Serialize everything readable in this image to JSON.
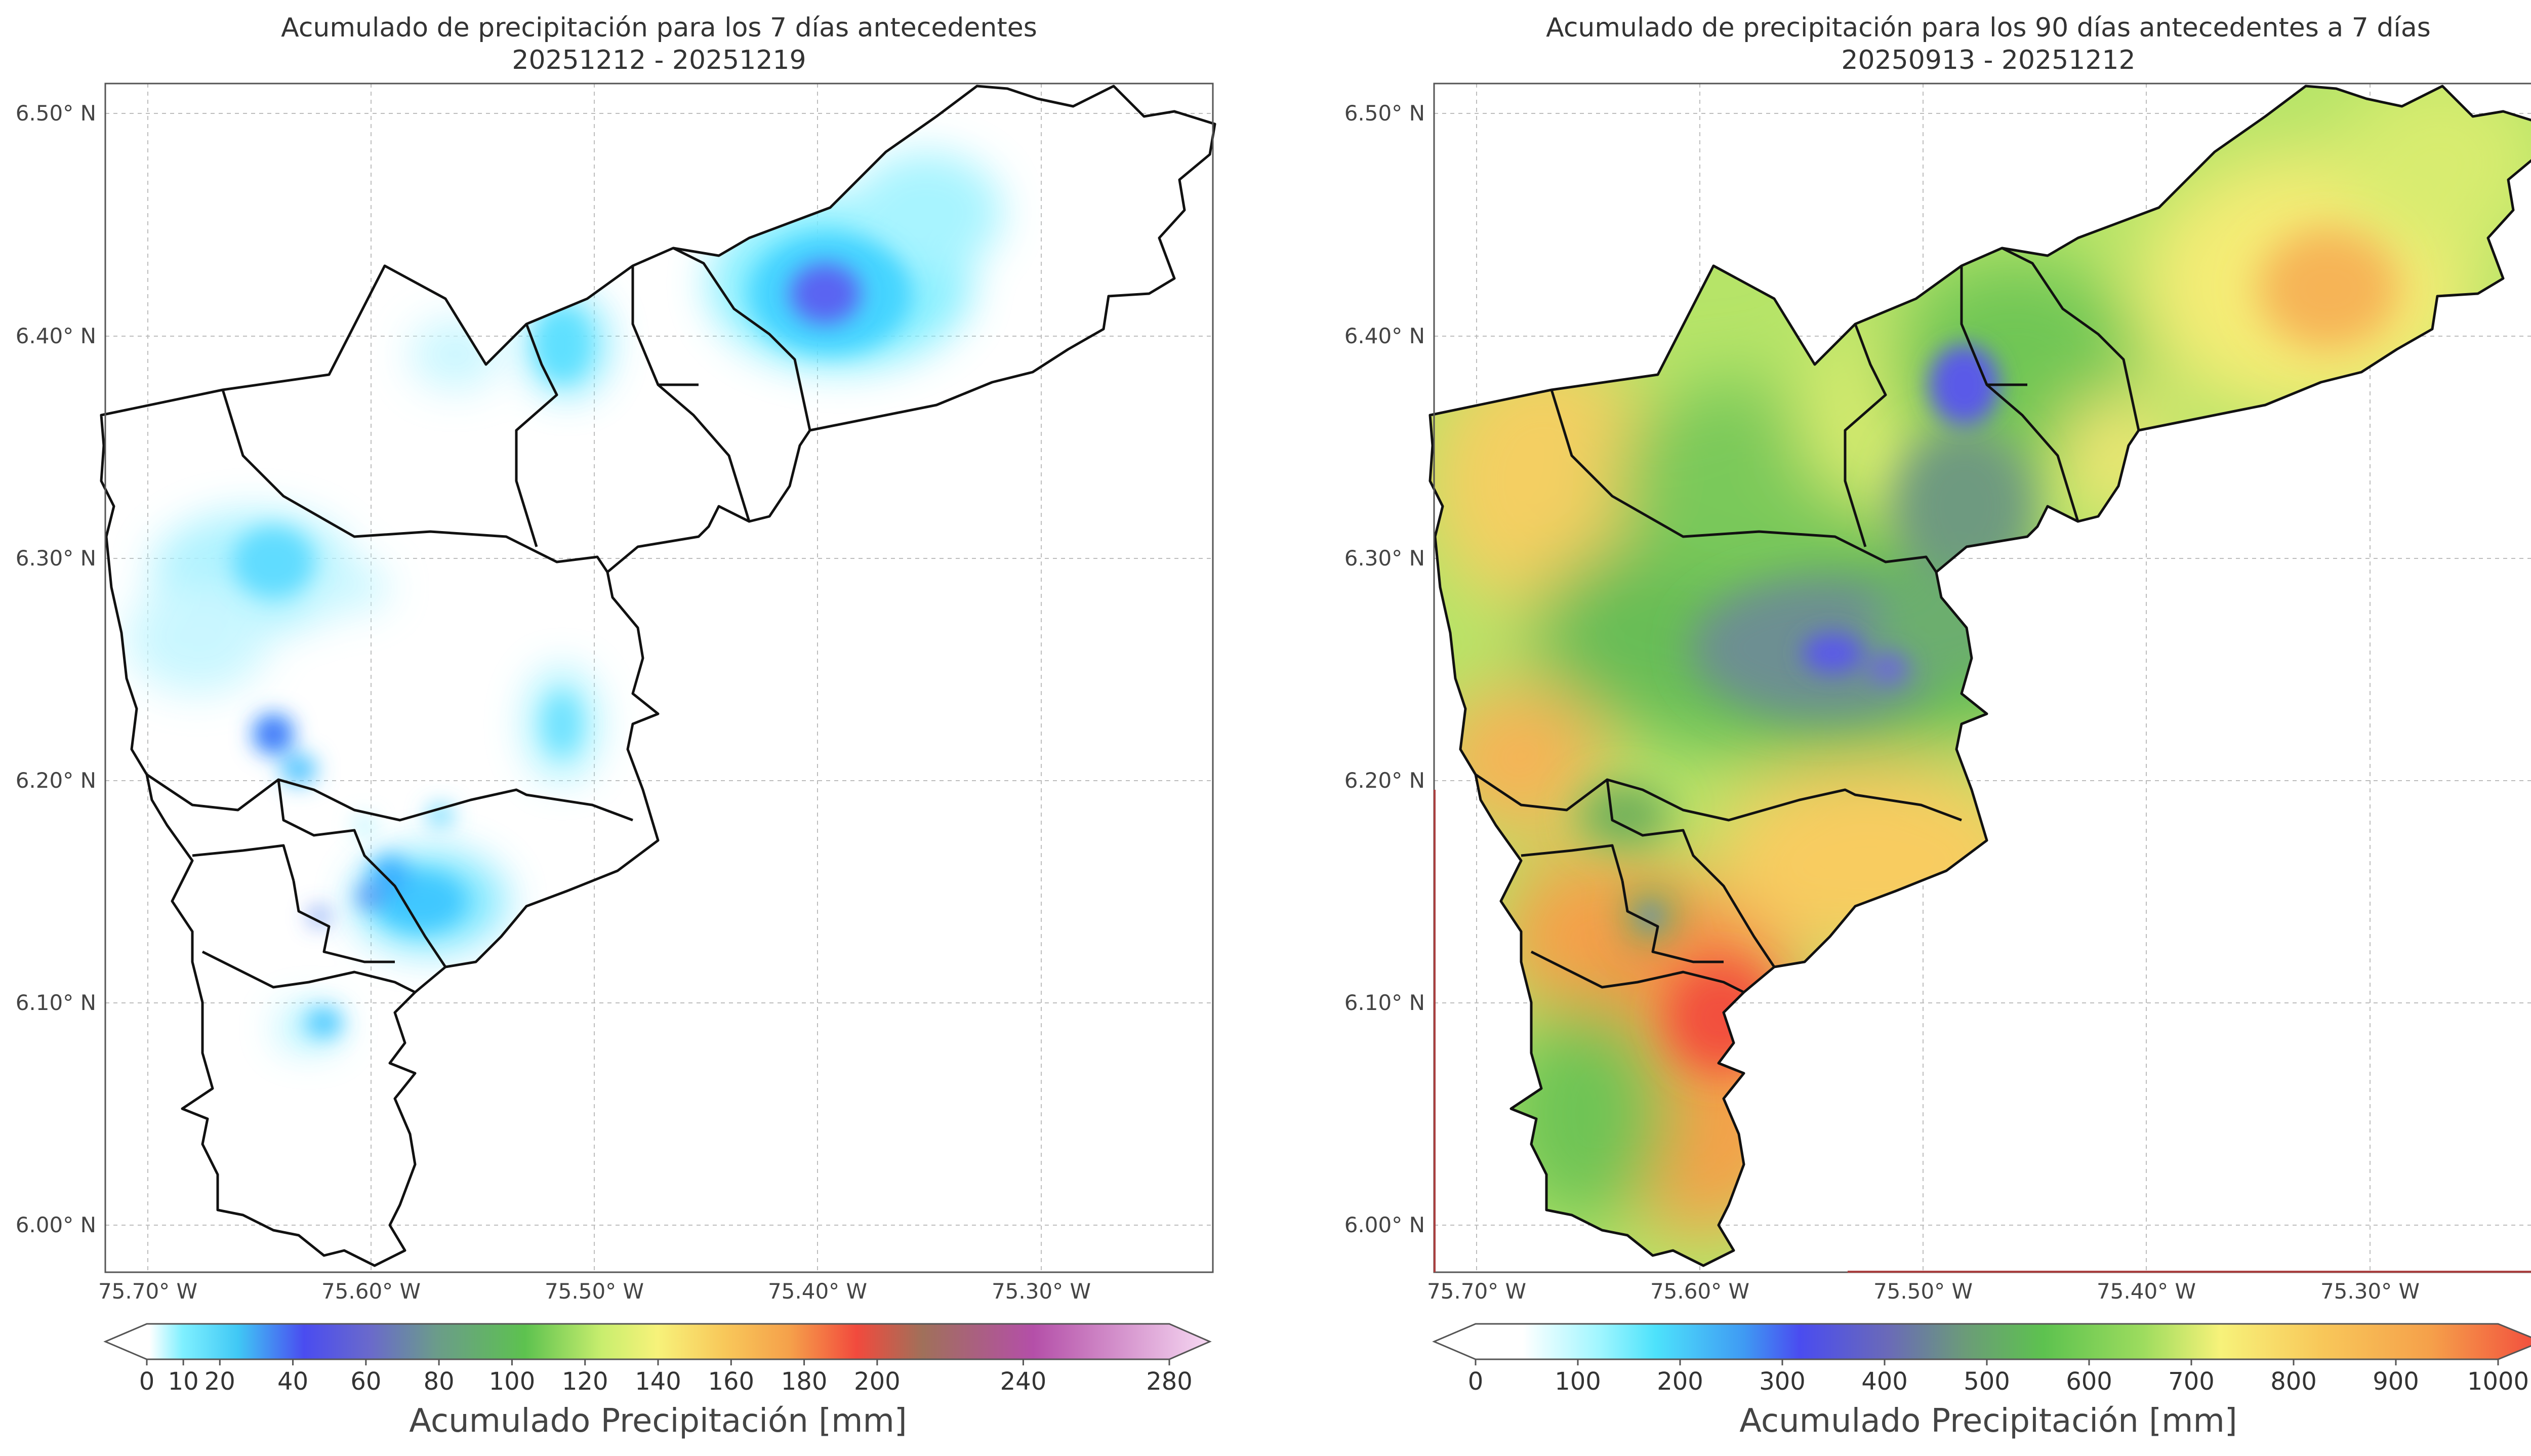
{
  "panels": [
    {
      "title_line1": "Acumulado de precipitación para los 7 días antecedentes",
      "title_line2": "20251212 - 20251219",
      "x_ticks": [
        "75.70° W",
        "75.60° W",
        "75.50° W",
        "75.40° W",
        "75.30° W"
      ],
      "y_ticks": [
        "6.50° N",
        "6.40° N",
        "6.30° N",
        "6.20° N",
        "6.10° N",
        "6.00° N"
      ],
      "colorbar": {
        "ticks": [
          "0",
          "10",
          "20",
          "40",
          "60",
          "80",
          "100",
          "120",
          "140",
          "160",
          "180",
          "200",
          "240",
          "280"
        ],
        "tick_values": [
          0,
          10,
          20,
          40,
          60,
          80,
          100,
          120,
          140,
          160,
          180,
          200,
          240,
          280
        ],
        "label": "Acumulado Precipitación [mm]"
      }
    },
    {
      "title_line1": "Acumulado de precipitación para los 90 días antecedentes a 7 días",
      "title_line2": "20250913 - 20251212",
      "x_ticks": [
        "75.70° W",
        "75.60° W",
        "75.50° W",
        "75.40° W",
        "75.30° W"
      ],
      "y_ticks": [
        "6.50° N",
        "6.40° N",
        "6.30° N",
        "6.20° N",
        "6.10° N",
        "6.00° N"
      ],
      "colorbar": {
        "ticks": [
          "0",
          "100",
          "200",
          "300",
          "400",
          "500",
          "600",
          "700",
          "800",
          "900",
          "1000"
        ],
        "tick_values": [
          0,
          100,
          200,
          300,
          400,
          500,
          600,
          700,
          800,
          900,
          1000
        ],
        "label": "Acumulado Precipitación [mm]"
      }
    }
  ],
  "colors": {
    "cyan": "#55e8ff",
    "blue": "#4a4cf0",
    "green": "#5dc24f",
    "yellow": "#f7f27a",
    "orange": "#f5a04a",
    "red": "#f24a3d",
    "magenta": "#b44fa8",
    "pink": "#f3c6ee"
  }
}
